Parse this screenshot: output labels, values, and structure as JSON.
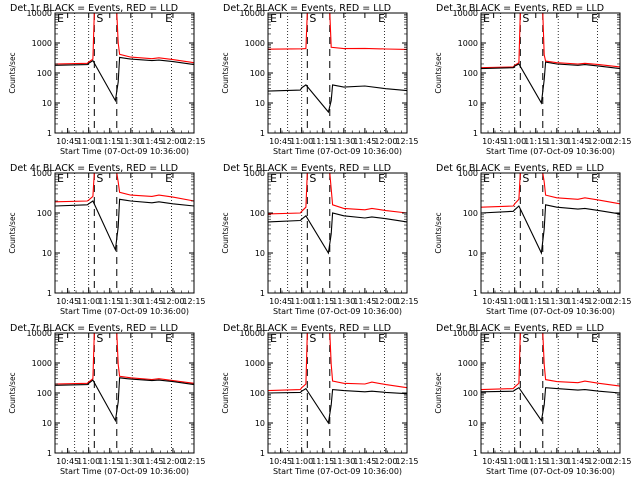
{
  "chart_data": [
    {
      "type": "line",
      "title": "Det 1r BLACK = Events, RED = LLD",
      "xlabel": "Start Time (07-Oct-09 10:36:00)",
      "ylabel": "Counts/sec",
      "ylog": true,
      "ylim": [
        1,
        10000
      ],
      "xlim": [
        "10:36",
        "12:15"
      ],
      "xticks": [
        "10:45",
        "11:00",
        "11:15",
        "11:30",
        "11:45",
        "12:00",
        "12:15"
      ],
      "yticks": [
        "1",
        "10",
        "100",
        "1000",
        "10000"
      ],
      "markers": [
        {
          "label": "E",
          "time": "10:36"
        },
        {
          "label": "S",
          "time": "11:04"
        },
        {
          "label": "E",
          "time": "11:53"
        }
      ],
      "dashed_lines": [
        "11:04",
        "11:20"
      ],
      "dotted_lines": [
        "10:50",
        "11:00",
        "11:31",
        "11:59"
      ],
      "series": [
        {
          "name": "RED = LLD",
          "color": "#ff0000",
          "x": [
            "10:36",
            "10:59",
            "11:00",
            "11:03",
            "11:04",
            "11:20",
            "11:21",
            "11:22",
            "11:30",
            "11:45",
            "11:50",
            "12:00",
            "12:15"
          ],
          "y": [
            200,
            210,
            230,
            290,
            10000,
            10000,
            1000,
            420,
            340,
            300,
            320,
            280,
            220
          ]
        },
        {
          "name": "BLACK = Events",
          "color": "#000000",
          "x": [
            "10:36",
            "10:59",
            "11:00",
            "11:03",
            "11:19",
            "11:21",
            "11:22",
            "11:30",
            "11:45",
            "11:50",
            "12:00",
            "12:15"
          ],
          "y": [
            180,
            190,
            210,
            260,
            12,
            50,
            330,
            290,
            260,
            270,
            240,
            190
          ]
        }
      ]
    },
    {
      "type": "line",
      "title": "Det 2r BLACK = Events, RED = LLD",
      "xlabel": "Start Time (07-Oct-09 10:36:00)",
      "ylabel": "Counts/sec",
      "ylog": true,
      "ylim": [
        1,
        10000
      ],
      "xlim": [
        "10:36",
        "12:15"
      ],
      "xticks": [
        "10:45",
        "11:00",
        "11:15",
        "11:30",
        "11:45",
        "12:00",
        "12:15"
      ],
      "yticks": [
        "1",
        "10",
        "100",
        "1000",
        "10000"
      ],
      "markers": [
        {
          "label": "E",
          "time": "10:36"
        },
        {
          "label": "S",
          "time": "11:04"
        },
        {
          "label": "E",
          "time": "11:53"
        }
      ],
      "dashed_lines": [
        "11:04",
        "11:20"
      ],
      "dotted_lines": [
        "10:50",
        "11:00",
        "11:31",
        "11:59"
      ],
      "series": [
        {
          "name": "RED = LLD",
          "color": "#ff0000",
          "x": [
            "10:36",
            "11:00",
            "11:03",
            "11:04",
            "11:20",
            "11:21",
            "11:30",
            "11:45",
            "12:00",
            "12:15"
          ],
          "y": [
            620,
            640,
            650,
            10000,
            10000,
            720,
            650,
            660,
            630,
            610
          ]
        },
        {
          "name": "BLACK = Events",
          "color": "#000000",
          "x": [
            "10:36",
            "10:59",
            "11:00",
            "11:03",
            "11:19",
            "11:21",
            "11:22",
            "11:30",
            "11:45",
            "12:00",
            "12:15"
          ],
          "y": [
            25,
            27,
            32,
            40,
            5,
            12,
            40,
            34,
            37,
            30,
            26
          ]
        }
      ]
    },
    {
      "type": "line",
      "title": "Det 3r BLACK = Events, RED = LLD",
      "xlabel": "Start Time (07-Oct-09 10:36:00)",
      "ylabel": "Counts/sec",
      "ylog": true,
      "ylim": [
        1,
        10000
      ],
      "xlim": [
        "10:36",
        "12:15"
      ],
      "xticks": [
        "10:45",
        "11:00",
        "11:15",
        "11:30",
        "11:45",
        "12:00",
        "12:15"
      ],
      "yticks": [
        "1",
        "10",
        "100",
        "1000",
        "10000"
      ],
      "markers": [
        {
          "label": "E",
          "time": "10:36"
        },
        {
          "label": "S",
          "time": "11:04"
        },
        {
          "label": "E",
          "time": "11:53"
        }
      ],
      "dashed_lines": [
        "11:04",
        "11:20"
      ],
      "dotted_lines": [
        "10:50",
        "11:00",
        "11:31",
        "11:59"
      ],
      "series": [
        {
          "name": "RED = LLD",
          "color": "#ff0000",
          "x": [
            "10:36",
            "10:59",
            "11:00",
            "11:03",
            "11:04",
            "11:20",
            "11:21",
            "11:22",
            "11:30",
            "11:45",
            "11:50",
            "12:00",
            "12:15"
          ],
          "y": [
            150,
            160,
            180,
            220,
            10000,
            10000,
            400,
            250,
            220,
            200,
            210,
            190,
            160
          ]
        },
        {
          "name": "BLACK = Events",
          "color": "#000000",
          "x": [
            "10:36",
            "10:59",
            "11:00",
            "11:03",
            "11:19",
            "11:21",
            "11:22",
            "11:30",
            "11:45",
            "11:50",
            "12:00",
            "12:15"
          ],
          "y": [
            140,
            150,
            170,
            200,
            10,
            60,
            230,
            200,
            180,
            190,
            170,
            140
          ]
        }
      ]
    },
    {
      "type": "line",
      "title": "Det 4r BLACK = Events, RED = LLD",
      "xlabel": "Start Time (07-Oct-09 10:36:00)",
      "ylabel": "Counts/sec",
      "ylog": true,
      "ylim": [
        1,
        1000
      ],
      "xlim": [
        "10:36",
        "12:15"
      ],
      "xticks": [
        "10:45",
        "11:00",
        "11:15",
        "11:30",
        "11:45",
        "12:00",
        "12:15"
      ],
      "yticks": [
        "1",
        "10",
        "100",
        "1000"
      ],
      "markers": [
        {
          "label": "E",
          "time": "10:36"
        },
        {
          "label": "S",
          "time": "11:04"
        },
        {
          "label": "E",
          "time": "11:53"
        }
      ],
      "dashed_lines": [
        "11:04",
        "11:20"
      ],
      "dotted_lines": [
        "10:50",
        "11:00",
        "11:31",
        "11:59"
      ],
      "series": [
        {
          "name": "RED = LLD",
          "color": "#ff0000",
          "x": [
            "10:36",
            "10:59",
            "11:00",
            "11:03",
            "11:04",
            "11:20",
            "11:21",
            "11:22",
            "11:30",
            "11:45",
            "11:50",
            "12:00",
            "12:15"
          ],
          "y": [
            190,
            200,
            210,
            260,
            1000,
            1000,
            600,
            330,
            280,
            260,
            280,
            250,
            200
          ]
        },
        {
          "name": "BLACK = Events",
          "color": "#000000",
          "x": [
            "10:36",
            "10:59",
            "11:00",
            "11:03",
            "11:19",
            "11:21",
            "11:22",
            "11:30",
            "11:45",
            "11:50",
            "12:00",
            "12:15"
          ],
          "y": [
            150,
            160,
            170,
            200,
            12,
            45,
            220,
            200,
            180,
            190,
            170,
            150
          ]
        }
      ]
    },
    {
      "type": "line",
      "title": "Det 5r BLACK = Events, RED = LLD",
      "xlabel": "Start Time (07-Oct-09 10:36:00)",
      "ylabel": "Counts/sec",
      "ylog": true,
      "ylim": [
        1,
        1000
      ],
      "xlim": [
        "10:36",
        "12:15"
      ],
      "xticks": [
        "10:45",
        "11:00",
        "11:15",
        "11:30",
        "11:45",
        "12:00",
        "12:15"
      ],
      "yticks": [
        "1",
        "10",
        "100",
        "1000"
      ],
      "markers": [
        {
          "label": "E",
          "time": "10:36"
        },
        {
          "label": "S",
          "time": "11:04"
        },
        {
          "label": "E",
          "time": "11:53"
        }
      ],
      "dashed_lines": [
        "11:04",
        "11:20"
      ],
      "dotted_lines": [
        "10:50",
        "11:00",
        "11:31",
        "11:59"
      ],
      "series": [
        {
          "name": "RED = LLD",
          "color": "#ff0000",
          "x": [
            "10:36",
            "10:59",
            "11:00",
            "11:03",
            "11:04",
            "11:20",
            "11:21",
            "11:22",
            "11:30",
            "11:45",
            "11:50",
            "12:00",
            "12:15"
          ],
          "y": [
            95,
            100,
            110,
            140,
            1000,
            1000,
            400,
            160,
            130,
            120,
            130,
            115,
            100
          ]
        },
        {
          "name": "BLACK = Events",
          "color": "#000000",
          "x": [
            "10:36",
            "10:59",
            "11:00",
            "11:03",
            "11:19",
            "11:21",
            "11:22",
            "11:30",
            "11:45",
            "11:50",
            "12:00",
            "12:15"
          ],
          "y": [
            60,
            65,
            70,
            85,
            10,
            30,
            100,
            85,
            75,
            80,
            72,
            60
          ]
        }
      ]
    },
    {
      "type": "line",
      "title": "Det 6r BLACK = Events, RED = LLD",
      "xlabel": "Start Time (07-Oct-09 10:36:00)",
      "ylabel": "Counts/sec",
      "ylog": true,
      "ylim": [
        1,
        1000
      ],
      "xlim": [
        "10:36",
        "12:15"
      ],
      "xticks": [
        "10:45",
        "11:00",
        "11:15",
        "11:30",
        "11:45",
        "12:00",
        "12:15"
      ],
      "yticks": [
        "1",
        "10",
        "100",
        "1000"
      ],
      "markers": [
        {
          "label": "E",
          "time": "10:36"
        },
        {
          "label": "S",
          "time": "11:04"
        },
        {
          "label": "E",
          "time": "11:53"
        }
      ],
      "dashed_lines": [
        "11:04",
        "11:20"
      ],
      "dotted_lines": [
        "10:50",
        "11:00",
        "11:31",
        "11:59"
      ],
      "series": [
        {
          "name": "RED = LLD",
          "color": "#ff0000",
          "x": [
            "10:36",
            "10:59",
            "11:00",
            "11:03",
            "11:04",
            "11:20",
            "11:21",
            "11:22",
            "11:30",
            "11:45",
            "11:50",
            "12:00",
            "12:15"
          ],
          "y": [
            140,
            150,
            170,
            220,
            1000,
            1000,
            600,
            280,
            240,
            220,
            240,
            210,
            170
          ]
        },
        {
          "name": "BLACK = Events",
          "color": "#000000",
          "x": [
            "10:36",
            "10:59",
            "11:00",
            "11:03",
            "11:19",
            "11:21",
            "11:22",
            "11:30",
            "11:45",
            "11:50",
            "12:00",
            "12:15"
          ],
          "y": [
            100,
            110,
            120,
            150,
            10,
            40,
            160,
            140,
            125,
            130,
            115,
            95
          ]
        }
      ]
    },
    {
      "type": "line",
      "title": "Det 7r BLACK = Events, RED = LLD",
      "xlabel": "Start Time (07-Oct-09 10:36:00)",
      "ylabel": "Counts/sec",
      "ylog": true,
      "ylim": [
        1,
        10000
      ],
      "xlim": [
        "10:36",
        "12:15"
      ],
      "xticks": [
        "10:45",
        "11:00",
        "11:15",
        "11:30",
        "11:45",
        "12:00",
        "12:15"
      ],
      "yticks": [
        "1",
        "10",
        "100",
        "1000",
        "10000"
      ],
      "markers": [
        {
          "label": "E",
          "time": "10:36"
        },
        {
          "label": "S",
          "time": "11:04"
        },
        {
          "label": "E",
          "time": "11:53"
        }
      ],
      "dashed_lines": [
        "11:04",
        "11:20"
      ],
      "dotted_lines": [
        "10:50",
        "11:00",
        "11:31",
        "11:59"
      ],
      "series": [
        {
          "name": "RED = LLD",
          "color": "#ff0000",
          "x": [
            "10:36",
            "10:59",
            "11:00",
            "11:03",
            "11:04",
            "11:20",
            "11:21",
            "11:22",
            "11:30",
            "11:45",
            "11:50",
            "12:00",
            "12:15"
          ],
          "y": [
            200,
            210,
            230,
            300,
            10000,
            10000,
            900,
            360,
            320,
            280,
            300,
            260,
            210
          ]
        },
        {
          "name": "BLACK = Events",
          "color": "#000000",
          "x": [
            "10:36",
            "10:59",
            "11:00",
            "11:03",
            "11:19",
            "11:21",
            "11:22",
            "11:30",
            "11:45",
            "11:50",
            "12:00",
            "12:15"
          ],
          "y": [
            180,
            190,
            210,
            270,
            12,
            50,
            320,
            290,
            260,
            270,
            240,
            190
          ]
        }
      ]
    },
    {
      "type": "line",
      "title": "Det 8r BLACK = Events, RED = LLD",
      "xlabel": "Start Time (07-Oct-09 10:36:00)",
      "ylabel": "Counts/sec",
      "ylog": true,
      "ylim": [
        1,
        10000
      ],
      "xlim": [
        "10:36",
        "12:15"
      ],
      "xticks": [
        "10:45",
        "11:00",
        "11:15",
        "11:30",
        "11:45",
        "12:00",
        "12:15"
      ],
      "yticks": [
        "1",
        "10",
        "100",
        "1000",
        "10000"
      ],
      "markers": [
        {
          "label": "E",
          "time": "10:36"
        },
        {
          "label": "S",
          "time": "11:04"
        },
        {
          "label": "E",
          "time": "11:53"
        }
      ],
      "dashed_lines": [
        "11:04",
        "11:20"
      ],
      "dotted_lines": [
        "10:50",
        "11:00",
        "11:31",
        "11:59"
      ],
      "series": [
        {
          "name": "RED = LLD",
          "color": "#ff0000",
          "x": [
            "10:36",
            "10:59",
            "11:00",
            "11:03",
            "11:04",
            "11:20",
            "11:21",
            "11:22",
            "11:30",
            "11:45",
            "11:50",
            "12:00",
            "12:15"
          ],
          "y": [
            120,
            130,
            150,
            200,
            10000,
            10000,
            900,
            250,
            210,
            200,
            230,
            190,
            150
          ]
        },
        {
          "name": "BLACK = Events",
          "color": "#000000",
          "x": [
            "10:36",
            "10:59",
            "11:00",
            "11:03",
            "11:19",
            "11:21",
            "11:22",
            "11:30",
            "11:45",
            "11:50",
            "12:00",
            "12:15"
          ],
          "y": [
            100,
            105,
            115,
            140,
            10,
            40,
            130,
            120,
            110,
            115,
            105,
            95
          ]
        }
      ]
    },
    {
      "type": "line",
      "title": "Det 9r BLACK = Events, RED = LLD",
      "xlabel": "Start Time (07-Oct-09 10:36:00)",
      "ylabel": "Counts/sec",
      "ylog": true,
      "ylim": [
        1,
        10000
      ],
      "xlim": [
        "10:36",
        "12:15"
      ],
      "xticks": [
        "10:45",
        "11:00",
        "11:15",
        "11:30",
        "11:45",
        "12:00",
        "12:15"
      ],
      "yticks": [
        "1",
        "10",
        "100",
        "1000",
        "10000"
      ],
      "markers": [
        {
          "label": "E",
          "time": "10:36"
        },
        {
          "label": "S",
          "time": "11:04"
        },
        {
          "label": "E",
          "time": "11:53"
        }
      ],
      "dashed_lines": [
        "11:04",
        "11:20"
      ],
      "dotted_lines": [
        "10:50",
        "11:00",
        "11:31",
        "11:59"
      ],
      "series": [
        {
          "name": "RED = LLD",
          "color": "#ff0000",
          "x": [
            "10:36",
            "10:59",
            "11:00",
            "11:03",
            "11:04",
            "11:20",
            "11:21",
            "11:22",
            "11:30",
            "11:45",
            "11:50",
            "12:00",
            "12:15"
          ],
          "y": [
            130,
            140,
            160,
            210,
            10000,
            10000,
            900,
            280,
            240,
            220,
            250,
            210,
            170
          ]
        },
        {
          "name": "BLACK = Events",
          "color": "#000000",
          "x": [
            "10:36",
            "10:59",
            "11:00",
            "11:03",
            "11:19",
            "11:21",
            "11:22",
            "11:30",
            "11:45",
            "11:50",
            "12:00",
            "12:15"
          ],
          "y": [
            110,
            115,
            125,
            150,
            12,
            40,
            150,
            140,
            125,
            130,
            115,
            100
          ]
        }
      ]
    }
  ]
}
